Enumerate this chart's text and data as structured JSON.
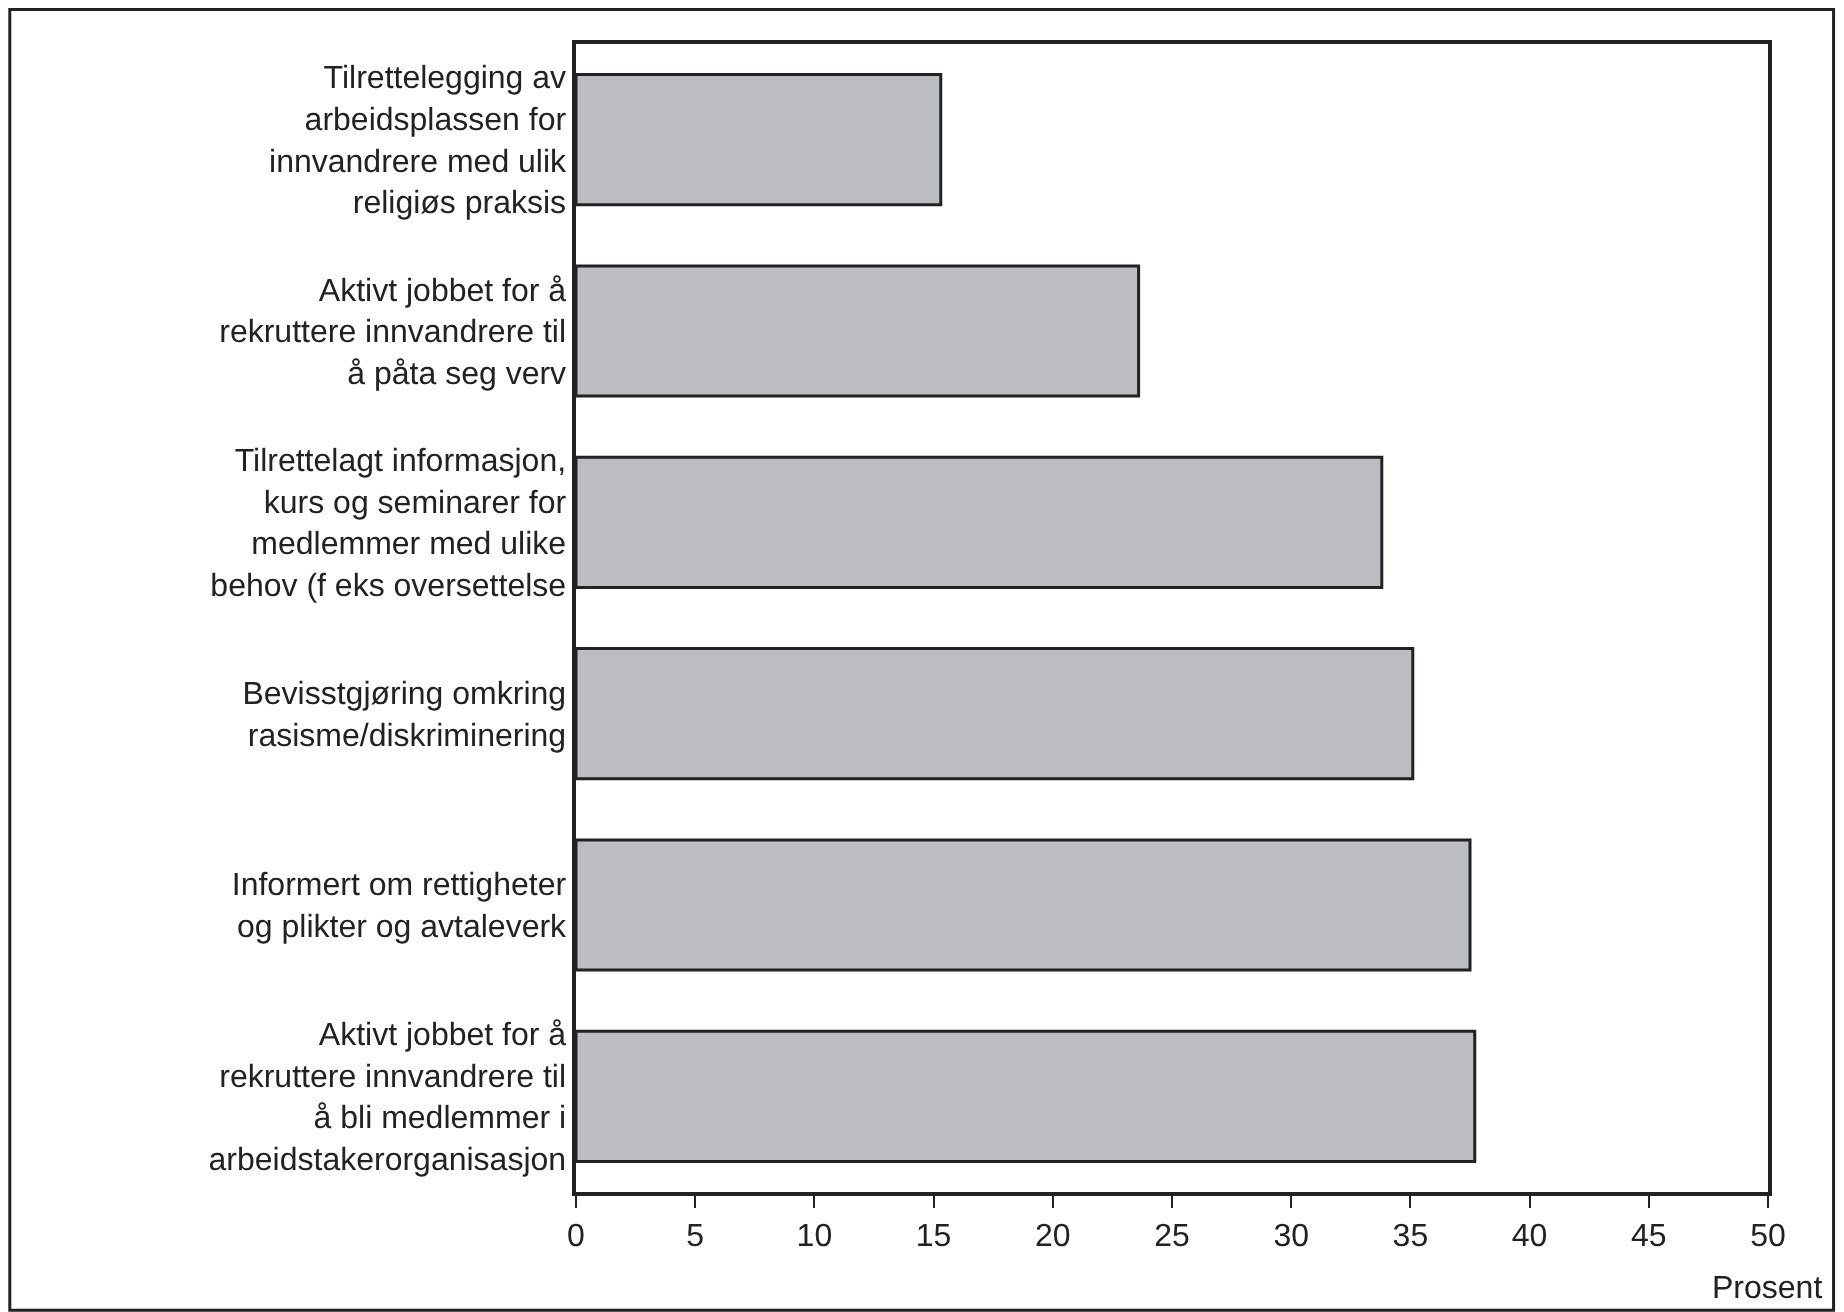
{
  "chart_data": {
    "type": "bar",
    "orientation": "horizontal",
    "xlabel": "Prosent",
    "categories": [
      "Tilrettelegging av\narbeidsplassen for\ninnvandrere med ulik\nreligiøs praksis",
      "Aktivt jobbet for å\nrekruttere innvandrere til\nå påta seg verv",
      "Tilrettelagt informasjon,\nkurs og seminarer for\nmedlemmer med ulike\nbehov (f eks oversettelse",
      "Bevisstgjøring omkring\nrasisme/diskriminering",
      "Informert om rettigheter\nog plikter og avtaleverk",
      "Aktivt jobbet for å\nrekruttere innvandrere til\nå bli medlemmer i\narbeidstakerorganisasjon"
    ],
    "values": [
      15.3,
      23.6,
      33.8,
      35.1,
      37.5,
      37.7
    ],
    "color": "#bcbdc1",
    "xlim": [
      0,
      50
    ],
    "xticks": [
      0,
      5,
      10,
      15,
      20,
      25,
      30,
      35,
      40,
      45,
      50
    ]
  }
}
